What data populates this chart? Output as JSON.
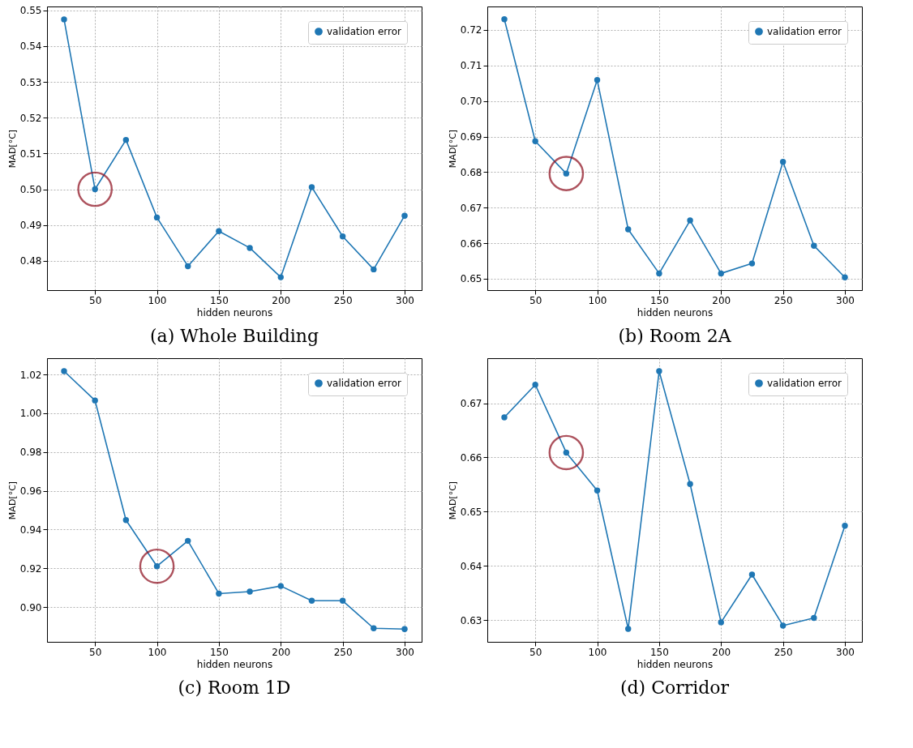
{
  "chart_data": [
    {
      "type": "line",
      "title": "(a) Whole Building",
      "xlabel": "hidden neurons",
      "ylabel": "MAD[°C]",
      "xlim": [
        11.25,
        313.75
      ],
      "xticks": [
        50,
        100,
        150,
        200,
        250,
        300
      ],
      "ylim": [
        0.4718,
        0.5511
      ],
      "yticks": [
        {
          "value": 0.48,
          "label": "0.48"
        },
        {
          "value": 0.49,
          "label": "0.49"
        },
        {
          "value": 0.5,
          "label": "0.50"
        },
        {
          "value": 0.51,
          "label": "0.51"
        },
        {
          "value": 0.52,
          "label": "0.52"
        },
        {
          "value": 0.53,
          "label": "0.53"
        },
        {
          "value": 0.54,
          "label": "0.54"
        },
        {
          "value": 0.55,
          "label": "0.55"
        }
      ],
      "grid": true,
      "legend": "top right",
      "x": [
        25,
        50,
        75,
        100,
        125,
        150,
        175,
        200,
        225,
        250,
        275,
        300
      ],
      "series": [
        {
          "name": "validation error",
          "color": "#1f77b4",
          "marker": "circle",
          "values": [
            0.5475,
            0.5,
            0.5138,
            0.4921,
            0.4785,
            0.4883,
            0.4836,
            0.4754,
            0.5006,
            0.4868,
            0.4776,
            0.4926
          ]
        },
        {
          "type": "scatter",
          "color": "#8b0a1a",
          "marker": "circle",
          "x": [
            50
          ],
          "values": [
            0.5
          ]
        }
      ]
    },
    {
      "type": "line",
      "title": "(b) Room 2A",
      "xlabel": "hidden neurons",
      "ylabel": "MAD[°C]",
      "xlim": [
        11.25,
        313.75
      ],
      "xticks": [
        50,
        100,
        150,
        200,
        250,
        300
      ],
      "ylim": [
        0.6468,
        0.7266
      ],
      "yticks": [
        {
          "value": 0.65,
          "label": "0.65"
        },
        {
          "value": 0.66,
          "label": "0.66"
        },
        {
          "value": 0.67,
          "label": "0.67"
        },
        {
          "value": 0.68,
          "label": "0.68"
        },
        {
          "value": 0.69,
          "label": "0.69"
        },
        {
          "value": 0.7,
          "label": "0.70"
        },
        {
          "value": 0.71,
          "label": "0.71"
        },
        {
          "value": 0.72,
          "label": "0.72"
        }
      ],
      "grid": true,
      "legend": "top right",
      "x": [
        25,
        50,
        75,
        100,
        125,
        150,
        175,
        200,
        225,
        250,
        275,
        300
      ],
      "series": [
        {
          "name": "validation error",
          "color": "#1f77b4",
          "marker": "circle",
          "values": [
            0.723,
            0.6887,
            0.6796,
            0.7059,
            0.6639,
            0.6515,
            0.6664,
            0.6515,
            0.6543,
            0.6829,
            0.6593,
            0.6504
          ]
        },
        {
          "type": "scatter",
          "color": "#8b0a1a",
          "marker": "circle",
          "x": [
            75
          ],
          "values": [
            0.6796
          ]
        }
      ]
    },
    {
      "type": "line",
      "title": "(c) Room 1D",
      "xlabel": "hidden neurons",
      "ylabel": "MAD[°C]",
      "xlim": [
        11.25,
        313.75
      ],
      "xticks": [
        50,
        100,
        150,
        200,
        250,
        300
      ],
      "ylim": [
        0.8821,
        1.0284
      ],
      "yticks": [
        {
          "value": 0.9,
          "label": "0.90"
        },
        {
          "value": 0.92,
          "label": "0.92"
        },
        {
          "value": 0.94,
          "label": "0.94"
        },
        {
          "value": 0.96,
          "label": "0.96"
        },
        {
          "value": 0.98,
          "label": "0.98"
        },
        {
          "value": 1.0,
          "label": "1.00"
        },
        {
          "value": 1.02,
          "label": "1.02"
        }
      ],
      "grid": true,
      "legend": "top right",
      "x": [
        25,
        50,
        75,
        100,
        125,
        150,
        175,
        200,
        225,
        250,
        275,
        300
      ],
      "series": [
        {
          "name": "validation error",
          "color": "#1f77b4",
          "marker": "circle",
          "values": [
            1.0217,
            1.0066,
            0.9449,
            0.9211,
            0.9342,
            0.907,
            0.908,
            0.9109,
            0.9033,
            0.9033,
            0.8891,
            0.8887
          ]
        },
        {
          "type": "scatter",
          "color": "#8b0a1a",
          "marker": "circle",
          "x": [
            100
          ],
          "values": [
            0.9211
          ]
        }
      ]
    },
    {
      "type": "line",
      "title": "(d) Corridor",
      "xlabel": "hidden neurons",
      "ylabel": "MAD[°C]",
      "xlim": [
        11.25,
        313.75
      ],
      "xticks": [
        50,
        100,
        150,
        200,
        250,
        300
      ],
      "ylim": [
        0.626,
        0.6783
      ],
      "yticks": [
        {
          "value": 0.63,
          "label": "0.63"
        },
        {
          "value": 0.64,
          "label": "0.64"
        },
        {
          "value": 0.65,
          "label": "0.65"
        },
        {
          "value": 0.66,
          "label": "0.66"
        },
        {
          "value": 0.67,
          "label": "0.67"
        }
      ],
      "grid": true,
      "legend": "top right",
      "x": [
        25,
        50,
        75,
        100,
        125,
        150,
        175,
        200,
        225,
        250,
        275,
        300
      ],
      "series": [
        {
          "name": "validation error",
          "color": "#1f77b4",
          "marker": "circle",
          "values": [
            0.6674,
            0.6734,
            0.6609,
            0.6539,
            0.6284,
            0.6759,
            0.6551,
            0.6296,
            0.6384,
            0.629,
            0.6304,
            0.6474
          ]
        },
        {
          "type": "scatter",
          "color": "#8b0a1a",
          "marker": "circle",
          "x": [
            75
          ],
          "values": [
            0.6609
          ]
        }
      ]
    }
  ]
}
